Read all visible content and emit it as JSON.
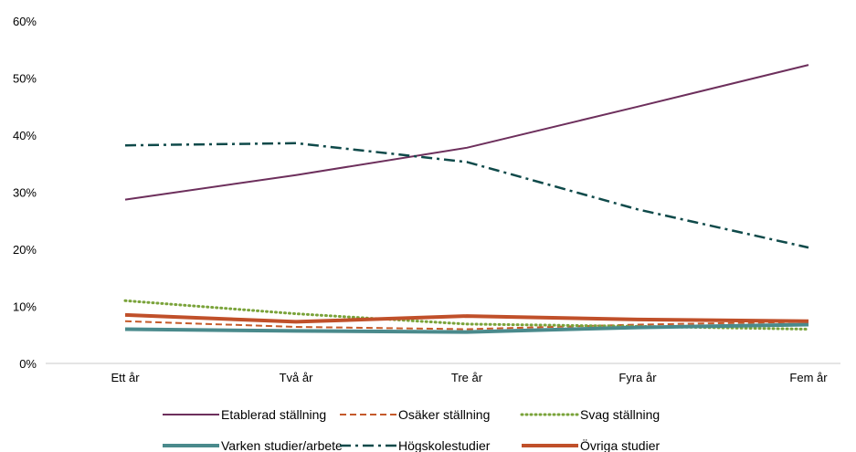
{
  "chart_data": {
    "type": "line",
    "categories": [
      "Ett år",
      "Två år",
      "Tre år",
      "Fyra år",
      "Fem år"
    ],
    "y_ticks": [
      "0%",
      "10%",
      "20%",
      "30%",
      "40%",
      "50%",
      "60%"
    ],
    "ylim": [
      0,
      60
    ],
    "grid": false,
    "legend_position": "bottom",
    "series": [
      {
        "name": "Etablerad ställning",
        "values": [
          28.7,
          33.0,
          37.8,
          45.0,
          52.3
        ],
        "color": "#6d2f5c",
        "style": "solid"
      },
      {
        "name": "Osäker ställning",
        "values": [
          7.4,
          6.4,
          6.0,
          6.8,
          7.3
        ],
        "color": "#c55a2a",
        "style": "dashed"
      },
      {
        "name": "Svag ställning",
        "values": [
          11.0,
          8.7,
          6.9,
          6.5,
          6.0
        ],
        "color": "#7aa33a",
        "style": "dotted"
      },
      {
        "name": "Varken studier/arbete",
        "values": [
          6.0,
          5.7,
          5.5,
          6.3,
          6.8
        ],
        "color": "#4a8a8c",
        "style": "thick"
      },
      {
        "name": "Högskolestudier",
        "values": [
          38.2,
          38.6,
          35.3,
          27.0,
          20.3
        ],
        "color": "#0f4a4a",
        "style": "dashdot"
      },
      {
        "name": "Övriga studier",
        "values": [
          8.5,
          7.3,
          8.3,
          7.7,
          7.4
        ],
        "color": "#c0502a",
        "style": "thick"
      }
    ]
  }
}
